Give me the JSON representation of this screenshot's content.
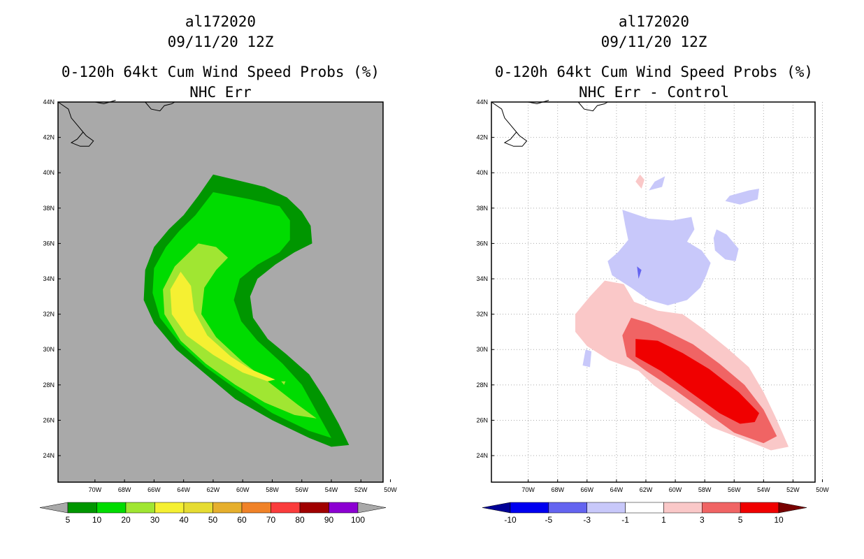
{
  "panels": [
    {
      "storm_id": "al172020",
      "datetime": "09/11/20 12Z",
      "title": "0-120h 64kt Cum Wind Speed Probs (%)",
      "subtitle": "NHC Err"
    },
    {
      "storm_id": "al172020",
      "datetime": "09/11/20 12Z",
      "title": "0-120h 64kt Cum Wind Speed Probs (%)",
      "subtitle": "NHC Err - Control"
    }
  ],
  "chart_data": [
    {
      "type": "heatmap",
      "title": "0-120h 64kt Cum Wind Speed Probs (%)",
      "subtitle": "NHC Err",
      "xlim": [
        -72.5,
        -50.5
      ],
      "ylim": [
        22.5,
        44
      ],
      "x_ticks": [
        "70W",
        "68W",
        "66W",
        "64W",
        "62W",
        "60W",
        "58W",
        "56W",
        "54W",
        "52W",
        "50W"
      ],
      "y_ticks": [
        "24N",
        "26N",
        "28N",
        "30N",
        "32N",
        "34N",
        "36N",
        "38N",
        "40N",
        "42N",
        "44N"
      ],
      "grid": false,
      "background_color": "#a9a9a9",
      "colorbar_levels": [
        "5",
        "10",
        "20",
        "30",
        "40",
        "50",
        "60",
        "70",
        "80",
        "90",
        "100"
      ],
      "colorbar_colors": [
        "#a9a9a9",
        "#009600",
        "#00dc00",
        "#a0e632",
        "#f5f032",
        "#e6dc32",
        "#e6af2d",
        "#f08228",
        "#fa3c3c",
        "#a00000",
        "#8c00d2",
        "#a9a9a9"
      ],
      "contours": [
        {
          "level": "5-10",
          "color": "#009600",
          "points": [
            [
              -62,
              39.9
            ],
            [
              -60.5,
              39.6
            ],
            [
              -58.5,
              39.2
            ],
            [
              -57,
              38.6
            ],
            [
              -56,
              37.8
            ],
            [
              -55.4,
              37
            ],
            [
              -55.3,
              36
            ],
            [
              -56.5,
              35.5
            ],
            [
              -57.8,
              34.8
            ],
            [
              -59,
              34
            ],
            [
              -59.5,
              33
            ],
            [
              -59.3,
              31.8
            ],
            [
              -58.3,
              30.6
            ],
            [
              -57,
              29.7
            ],
            [
              -55.5,
              28.6
            ],
            [
              -54.5,
              27.3
            ],
            [
              -53.5,
              25.8
            ],
            [
              -52.8,
              24.6
            ],
            [
              -54,
              24.5
            ],
            [
              -55.5,
              25
            ],
            [
              -58,
              26
            ],
            [
              -60.5,
              27.2
            ],
            [
              -62.5,
              28.6
            ],
            [
              -64.5,
              30
            ],
            [
              -66,
              31.5
            ],
            [
              -66.7,
              32.8
            ],
            [
              -66.6,
              34.5
            ],
            [
              -66,
              35.8
            ],
            [
              -65,
              36.8
            ],
            [
              -64,
              37.6
            ],
            [
              -63,
              38.7
            ]
          ]
        },
        {
          "level": "10-20",
          "color": "#00dc00",
          "points": [
            [
              -62,
              38.9
            ],
            [
              -59.5,
              38.5
            ],
            [
              -57.5,
              38.1
            ],
            [
              -56.8,
              37.3
            ],
            [
              -56.8,
              36.2
            ],
            [
              -57.5,
              35.5
            ],
            [
              -59,
              34.8
            ],
            [
              -60.2,
              34
            ],
            [
              -60.6,
              32.8
            ],
            [
              -60.1,
              31.6
            ],
            [
              -59,
              30.5
            ],
            [
              -57.3,
              29.2
            ],
            [
              -56,
              28
            ],
            [
              -55.2,
              26.8
            ],
            [
              -54,
              25
            ],
            [
              -55.5,
              25.4
            ],
            [
              -58,
              26.4
            ],
            [
              -60.5,
              27.8
            ],
            [
              -62.5,
              29
            ],
            [
              -64.2,
              30.3
            ],
            [
              -65.6,
              31.8
            ],
            [
              -66.1,
              33.2
            ],
            [
              -66,
              34.6
            ],
            [
              -65.2,
              35.8
            ],
            [
              -64.3,
              36.7
            ],
            [
              -63.2,
              37.6
            ]
          ]
        },
        {
          "level": "20-30",
          "color": "#a0e632",
          "points": [
            [
              -63,
              36
            ],
            [
              -61.8,
              35.8
            ],
            [
              -61,
              35.2
            ],
            [
              -61.8,
              34.5
            ],
            [
              -62.6,
              33.5
            ],
            [
              -62.8,
              32
            ],
            [
              -61.8,
              30.7
            ],
            [
              -60,
              29.3
            ],
            [
              -58,
              28
            ],
            [
              -56.3,
              26.9
            ],
            [
              -55,
              26.1
            ],
            [
              -56.5,
              26.3
            ],
            [
              -58.5,
              27
            ],
            [
              -60.5,
              28
            ],
            [
              -62.5,
              29.2
            ],
            [
              -64.2,
              30.5
            ],
            [
              -65.3,
              32
            ],
            [
              -65.4,
              33.4
            ],
            [
              -64.6,
              34.7
            ]
          ]
        },
        {
          "level": "30-40",
          "color": "#f5f032",
          "points": [
            [
              -64.2,
              34.4
            ],
            [
              -63.5,
              33.6
            ],
            [
              -63.3,
              32.2
            ],
            [
              -62.4,
              30.8
            ],
            [
              -60.8,
              29.6
            ],
            [
              -59.5,
              28.9
            ],
            [
              -57.8,
              28.3
            ],
            [
              -58.3,
              28.2
            ],
            [
              -60,
              28.7
            ],
            [
              -62,
              29.7
            ],
            [
              -63.8,
              30.8
            ],
            [
              -64.8,
              32
            ],
            [
              -64.9,
              33.4
            ]
          ]
        },
        {
          "level": "20-30",
          "color": "#a0e632",
          "points": [
            [
              -57.4,
              28.2
            ],
            [
              -57.1,
              28.2
            ],
            [
              -57.2,
              28
            ]
          ]
        }
      ],
      "coastlines": "Nova Scotia / Maine (top-left corner)"
    },
    {
      "type": "heatmap",
      "title": "0-120h 64kt Cum Wind Speed Probs (%)",
      "subtitle": "NHC Err - Control",
      "xlim": [
        -72.5,
        -50.5
      ],
      "ylim": [
        22.5,
        44
      ],
      "x_ticks": [
        "70W",
        "68W",
        "66W",
        "64W",
        "62W",
        "60W",
        "58W",
        "56W",
        "54W",
        "52W",
        "50W"
      ],
      "y_ticks": [
        "24N",
        "26N",
        "28N",
        "30N",
        "32N",
        "34N",
        "36N",
        "38N",
        "40N",
        "42N",
        "44N"
      ],
      "grid": true,
      "background_color": "#ffffff",
      "colorbar_levels": [
        "-10",
        "-5",
        "-3",
        "-1",
        "1",
        "3",
        "5",
        "10"
      ],
      "colorbar_colors": [
        "#000096",
        "#0000f0",
        "#6464f0",
        "#c8c8fa",
        "#ffffff",
        "#fac8c8",
        "#f06464",
        "#f00000",
        "#780000"
      ],
      "contours": [
        {
          "level": "1-3",
          "color": "#fac8c8",
          "points": [
            [
              -64.8,
              33.9
            ],
            [
              -63.5,
              33.7
            ],
            [
              -62.8,
              32.7
            ],
            [
              -61.2,
              32.2
            ],
            [
              -59.5,
              32
            ],
            [
              -58,
              31.1
            ],
            [
              -56.5,
              30.1
            ],
            [
              -55,
              29
            ],
            [
              -54,
              27.6
            ],
            [
              -53.2,
              26.2
            ],
            [
              -52.3,
              24.5
            ],
            [
              -53.5,
              24.3
            ],
            [
              -55,
              24.8
            ],
            [
              -57.5,
              25.6
            ],
            [
              -59.5,
              26.8
            ],
            [
              -61.5,
              28
            ],
            [
              -62.5,
              28.8
            ],
            [
              -64.5,
              29.4
            ],
            [
              -66,
              30.2
            ],
            [
              -66.8,
              31
            ],
            [
              -66.8,
              32
            ],
            [
              -65.8,
              33
            ]
          ]
        },
        {
          "level": "3-5",
          "color": "#f06464",
          "points": [
            [
              -63,
              31.8
            ],
            [
              -61.8,
              31.5
            ],
            [
              -60.5,
              31
            ],
            [
              -58.8,
              30.3
            ],
            [
              -57,
              29.2
            ],
            [
              -55.3,
              28
            ],
            [
              -54,
              26.6
            ],
            [
              -53.1,
              25.1
            ],
            [
              -54,
              24.7
            ],
            [
              -56,
              25.3
            ],
            [
              -58,
              26.5
            ],
            [
              -60,
              27.7
            ],
            [
              -62,
              28.8
            ],
            [
              -63.3,
              29.6
            ],
            [
              -63.6,
              30.8
            ]
          ]
        },
        {
          "level": "5-10",
          "color": "#f00000",
          "points": [
            [
              -62.7,
              30.6
            ],
            [
              -61.2,
              30.5
            ],
            [
              -59.5,
              29.8
            ],
            [
              -57.7,
              28.9
            ],
            [
              -55.7,
              27.6
            ],
            [
              -54.3,
              26.4
            ],
            [
              -54.6,
              25.9
            ],
            [
              -55.6,
              25.8
            ],
            [
              -57,
              26.4
            ],
            [
              -59,
              27.6
            ],
            [
              -61,
              28.8
            ],
            [
              -62.7,
              29.6
            ]
          ]
        },
        {
          "level": "-3--1",
          "color": "#c8c8fa",
          "points": [
            [
              -63.6,
              37.9
            ],
            [
              -61.8,
              37.4
            ],
            [
              -60.2,
              37.3
            ],
            [
              -58.9,
              37.5
            ],
            [
              -58.7,
              36.8
            ],
            [
              -59.2,
              36.1
            ],
            [
              -58.2,
              35.6
            ],
            [
              -57.6,
              34.9
            ],
            [
              -57.9,
              34.2
            ],
            [
              -58.3,
              33.5
            ],
            [
              -59.2,
              32.8
            ],
            [
              -60.5,
              32.5
            ],
            [
              -61.8,
              32.8
            ],
            [
              -63,
              33.5
            ],
            [
              -64.3,
              34.2
            ],
            [
              -64.6,
              35
            ],
            [
              -63.9,
              35.5
            ],
            [
              -63.2,
              36.2
            ],
            [
              -63.4,
              37
            ]
          ]
        },
        {
          "level": "-3--1",
          "color": "#c8c8fa",
          "points": [
            [
              -57.2,
              36.8
            ],
            [
              -56.5,
              36.5
            ],
            [
              -55.7,
              35.7
            ],
            [
              -55.9,
              35
            ],
            [
              -56.6,
              35.1
            ],
            [
              -57.3,
              35.6
            ],
            [
              -57.4,
              36.3
            ]
          ]
        },
        {
          "level": "-3--1",
          "color": "#c8c8fa",
          "points": [
            [
              -56.3,
              38.7
            ],
            [
              -55,
              39
            ],
            [
              -54.3,
              39.1
            ],
            [
              -54.4,
              38.5
            ],
            [
              -55.6,
              38.2
            ],
            [
              -56.6,
              38.4
            ]
          ]
        },
        {
          "level": "-3--1",
          "color": "#c8c8fa",
          "points": [
            [
              -61.4,
              39.5
            ],
            [
              -60.7,
              39.8
            ],
            [
              -60.9,
              39.2
            ],
            [
              -61.8,
              39.0
            ]
          ]
        },
        {
          "level": "-3--1",
          "color": "#c8c8fa",
          "points": [
            [
              -66.1,
              30
            ],
            [
              -65.7,
              29.9
            ],
            [
              -65.8,
              29
            ],
            [
              -66.3,
              29.1
            ]
          ]
        },
        {
          "level": "1-3",
          "color": "#fac8c8",
          "points": [
            [
              -62.4,
              39.9
            ],
            [
              -62.1,
              39.6
            ],
            [
              -62.3,
              39.1
            ],
            [
              -62.7,
              39.5
            ]
          ]
        },
        {
          "level": "-5--3",
          "color": "#6464f0",
          "points": [
            [
              -62.6,
              34.7
            ],
            [
              -62.3,
              34.5
            ],
            [
              -62.5,
              34
            ]
          ]
        }
      ],
      "coastlines": "Nova Scotia / Maine (top-left corner)"
    }
  ]
}
